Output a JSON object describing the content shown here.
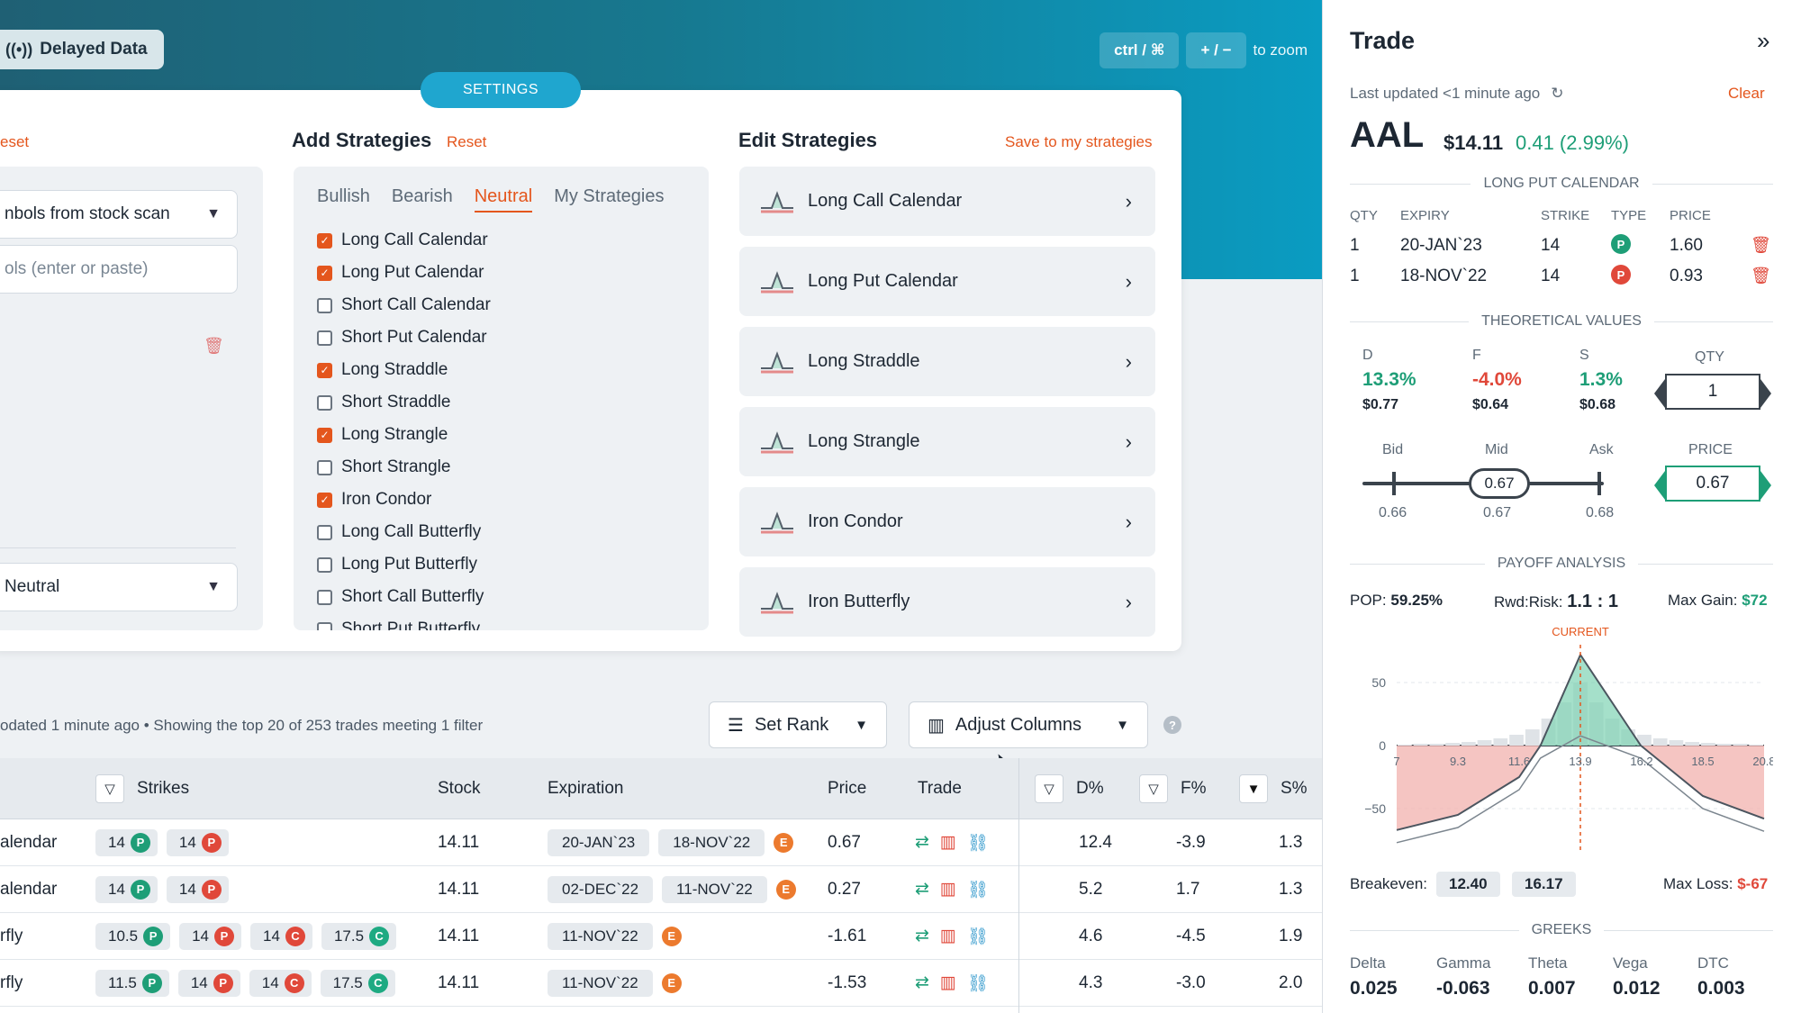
{
  "header": {
    "delayed_label": "Delayed Data",
    "zoom_key1": "ctrl / ⌘",
    "zoom_key2": "+ / −",
    "zoom_text": "to zoom"
  },
  "settings": {
    "tab_label": "SETTINGS",
    "left": {
      "reset_label": "eset",
      "source_select": "nbols from stock scan",
      "symbols_placeholder": "ols (enter or paste)",
      "outlook_select": "Neutral"
    },
    "add": {
      "title": "Add Strategies",
      "reset_label": "Reset",
      "tabs": [
        "Bullish",
        "Bearish",
        "Neutral",
        "My Strategies"
      ],
      "active_tab": "Neutral",
      "items": [
        {
          "label": "Long Call Calendar",
          "checked": true
        },
        {
          "label": "Long Put Calendar",
          "checked": true
        },
        {
          "label": "Short Call Calendar",
          "checked": false
        },
        {
          "label": "Short Put Calendar",
          "checked": false
        },
        {
          "label": "Long Straddle",
          "checked": true
        },
        {
          "label": "Short Straddle",
          "checked": false
        },
        {
          "label": "Long Strangle",
          "checked": true
        },
        {
          "label": "Short Strangle",
          "checked": false
        },
        {
          "label": "Iron Condor",
          "checked": true
        },
        {
          "label": "Long Call Butterfly",
          "checked": false
        },
        {
          "label": "Long Put Butterfly",
          "checked": false
        },
        {
          "label": "Short Call Butterfly",
          "checked": false
        },
        {
          "label": "Short Put Butterfly",
          "checked": false
        }
      ]
    },
    "edit": {
      "title": "Edit Strategies",
      "save_label": "Save to my strategies",
      "items": [
        "Long Call Calendar",
        "Long Put Calendar",
        "Long Straddle",
        "Long Strangle",
        "Iron Condor",
        "Iron Butterfly"
      ]
    }
  },
  "results": {
    "status": "odated 1 minute ago  •  Showing the top 20 of 253 trades meeting 1 filter",
    "set_rank_label": "Set Rank",
    "adjust_columns_label": "Adjust Columns",
    "help": "?"
  },
  "table": {
    "headers": {
      "strikes": "Strikes",
      "stock": "Stock",
      "expiration": "Expiration",
      "price": "Price",
      "trade": "Trade",
      "d": "D%",
      "f": "F%",
      "s": "S%"
    },
    "rows": [
      {
        "name": "alendar",
        "strikes": [
          {
            "v": "14",
            "t": "P"
          },
          {
            "v": "14",
            "t": "R"
          }
        ],
        "stock": "14.11",
        "exp": [
          "20-JAN`23",
          "18-NOV`22"
        ],
        "price": "0.67",
        "d": "12.4",
        "f": "-3.9",
        "s": "1.3"
      },
      {
        "name": "alendar",
        "strikes": [
          {
            "v": "14",
            "t": "P"
          },
          {
            "v": "14",
            "t": "R"
          }
        ],
        "stock": "14.11",
        "exp": [
          "02-DEC`22",
          "11-NOV`22"
        ],
        "price": "0.27",
        "d": "5.2",
        "f": "1.7",
        "s": "1.3"
      },
      {
        "name": "rfly",
        "strikes": [
          {
            "v": "10.5",
            "t": "P"
          },
          {
            "v": "14",
            "t": "R"
          },
          {
            "v": "14",
            "t": "RC"
          },
          {
            "v": "17.5",
            "t": "C"
          }
        ],
        "stock": "14.11",
        "exp": [
          "11-NOV`22"
        ],
        "price": "-1.61",
        "d": "4.6",
        "f": "-4.5",
        "s": "1.9"
      },
      {
        "name": "rfly",
        "strikes": [
          {
            "v": "11.5",
            "t": "P"
          },
          {
            "v": "14",
            "t": "R"
          },
          {
            "v": "14",
            "t": "RC"
          },
          {
            "v": "17.5",
            "t": "C"
          }
        ],
        "stock": "14.11",
        "exp": [
          "11-NOV`22"
        ],
        "price": "-1.53",
        "d": "4.3",
        "f": "-3.0",
        "s": "2.0"
      }
    ]
  },
  "trade": {
    "title": "Trade",
    "updated": "Last updated <1 minute ago",
    "clear_label": "Clear",
    "symbol": "AAL",
    "price": "$14.11",
    "change": "0.41 (2.99%)",
    "strategy_title": "LONG PUT CALENDAR",
    "leg_headers": {
      "qty": "QTY",
      "expiry": "EXPIRY",
      "strike": "STRIKE",
      "type": "TYPE",
      "price": "PRICE"
    },
    "legs": [
      {
        "qty": "1",
        "expiry": "20-JAN`23",
        "strike": "14",
        "type": "P",
        "price": "1.60",
        "type_color": "#1e9e77"
      },
      {
        "qty": "1",
        "expiry": "18-NOV`22",
        "strike": "14",
        "type": "P",
        "price": "0.93",
        "type_color": "#e0483a"
      }
    ],
    "theoretical_title": "THEORETICAL VALUES",
    "theo": {
      "d_label": "D",
      "d_pct": "13.3%",
      "d_val": "$0.77",
      "f_label": "F",
      "f_pct": "-4.0%",
      "f_val": "$0.64",
      "s_label": "S",
      "s_pct": "1.3%",
      "s_val": "$0.68",
      "qty_label": "QTY",
      "qty_value": "1"
    },
    "quote": {
      "bid_label": "Bid",
      "mid_label": "Mid",
      "ask_label": "Ask",
      "bid": "0.66",
      "mid": "0.67",
      "ask": "0.68",
      "mid_marker": "0.67",
      "price_label": "PRICE",
      "price_value": "0.67"
    },
    "payoff_title": "PAYOFF ANALYSIS",
    "pop_label": "POP:",
    "pop": "59.25%",
    "rwd_label": "Rwd:Risk:",
    "rwd": "1.1 : 1",
    "maxgain_label": "Max Gain:",
    "maxgain": "$72",
    "breakeven_label": "Breakeven:",
    "breakeven": [
      "12.40",
      "16.17"
    ],
    "maxloss_label": "Max Loss:",
    "maxloss": "$-67",
    "greeks_title": "GREEKS",
    "greeks": [
      {
        "label": "Delta",
        "value": "0.025"
      },
      {
        "label": "Gamma",
        "value": "-0.063"
      },
      {
        "label": "Theta",
        "value": "0.007"
      },
      {
        "label": "Vega",
        "value": "0.012"
      },
      {
        "label": "DTC",
        "value": "0.003"
      }
    ]
  },
  "chart_data": {
    "type": "line",
    "xticks": [
      "7",
      "9.3",
      "11.6",
      "13.9",
      "16.2",
      "18.5",
      "20.8"
    ],
    "yticks": [
      "50",
      "0",
      "−50"
    ],
    "current_label": "CURRENT",
    "x": [
      7,
      9.3,
      11.6,
      12.4,
      13.9,
      16.17,
      18.5,
      20.8
    ],
    "series": [
      {
        "values": [
          -67,
          -55,
          -25,
          0,
          72,
          0,
          -40,
          -58
        ]
      }
    ],
    "ylim": [
      -70,
      80
    ],
    "xlim": [
      7,
      20.8
    ],
    "current_x": 13.9
  }
}
